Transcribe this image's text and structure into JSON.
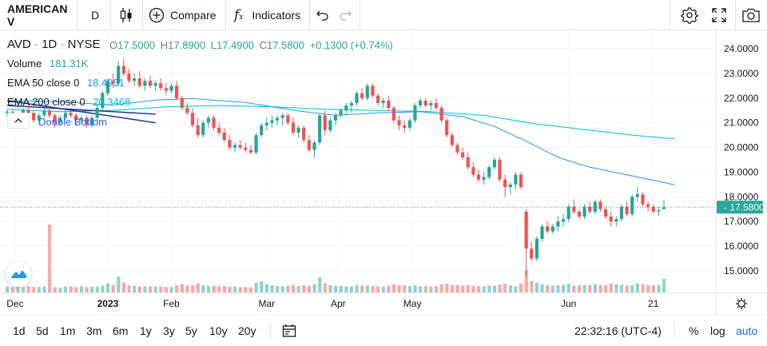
{
  "toolbar": {
    "symbol": "AMERICAN V",
    "interval": "D",
    "compare_label": "Compare",
    "indicators_label": "Indicators"
  },
  "legend": {
    "symbol": "AVD",
    "interval": "1D",
    "exchange": "NYSE",
    "o_label": "O",
    "o_value": "17.5000",
    "h_label": "H",
    "h_value": "17.8900",
    "l_label": "L",
    "l_value": "17.4900",
    "c_label": "C",
    "c_value": "17.5800",
    "change": "+0.1300 (+0.74%)",
    "volume_label": "Volume",
    "volume_value": "181.31K",
    "ema50_label": "EMA 50 close 0",
    "ema50_value": "18.4931",
    "ema200_label": "EMA 200 close 0",
    "ema200_value": "20.3468",
    "pattern_label": "Double Bottom"
  },
  "colors": {
    "up": "#26a69a",
    "down": "#ef5350",
    "ema50": "#2196f3",
    "ema200": "#00bcd4",
    "pattern": "#2962ff"
  },
  "price_tag": "17.5800",
  "time_display": "22:32:16 (UTC-4)",
  "ranges": [
    "1d",
    "5d",
    "1m",
    "3m",
    "6m",
    "1y",
    "3y",
    "5y",
    "10y",
    "20y"
  ],
  "scale_options": {
    "percent": "%",
    "log": "log",
    "auto": "auto"
  },
  "chart_data": {
    "type": "candlestick",
    "symbol": "AVD",
    "ylim": [
      14.5,
      24.5
    ],
    "y_ticks": [
      "24.0000",
      "23.0000",
      "22.0000",
      "21.0000",
      "20.0000",
      "19.0000",
      "18.0000",
      "17.0000",
      "16.0000",
      "15.0000"
    ],
    "x_ticks": [
      "Dec",
      "2023",
      "Feb",
      "Mar",
      "Apr",
      "May",
      "Jun",
      "21"
    ],
    "ohlc": [
      [
        21.4,
        21.55,
        21.25,
        21.45
      ],
      [
        21.45,
        21.5,
        21.1,
        21.2
      ],
      [
        21.2,
        21.4,
        21.0,
        21.35
      ],
      [
        21.35,
        21.6,
        21.2,
        21.5
      ],
      [
        21.5,
        21.7,
        21.3,
        21.4
      ],
      [
        21.4,
        21.5,
        21.0,
        21.1
      ],
      [
        21.1,
        21.4,
        21.0,
        21.3
      ],
      [
        21.3,
        21.6,
        21.2,
        21.5
      ],
      [
        21.5,
        21.7,
        21.2,
        21.3
      ],
      [
        21.3,
        21.4,
        20.8,
        21.0
      ],
      [
        21.0,
        21.3,
        20.9,
        21.2
      ],
      [
        21.2,
        21.5,
        21.1,
        21.4
      ],
      [
        21.4,
        21.5,
        21.2,
        21.3
      ],
      [
        21.3,
        21.4,
        20.9,
        21.1
      ],
      [
        21.1,
        21.3,
        21.0,
        21.2
      ],
      [
        21.2,
        21.3,
        20.8,
        20.9
      ],
      [
        20.9,
        21.3,
        20.8,
        21.2
      ],
      [
        21.2,
        21.7,
        21.1,
        21.6
      ],
      [
        21.6,
        22.3,
        21.5,
        22.2
      ],
      [
        22.2,
        22.8,
        22.1,
        22.7
      ],
      [
        22.7,
        23.0,
        22.4,
        22.6
      ],
      [
        22.6,
        23.5,
        22.5,
        23.3
      ],
      [
        23.3,
        23.6,
        22.9,
        23.0
      ],
      [
        23.0,
        23.2,
        22.6,
        22.7
      ],
      [
        22.7,
        23.0,
        22.5,
        22.8
      ],
      [
        22.8,
        23.1,
        22.4,
        22.5
      ],
      [
        22.5,
        22.8,
        22.3,
        22.7
      ],
      [
        22.7,
        22.9,
        22.4,
        22.5
      ],
      [
        22.5,
        22.7,
        22.3,
        22.6
      ],
      [
        22.6,
        22.8,
        22.3,
        22.4
      ],
      [
        22.4,
        22.6,
        22.1,
        22.3
      ],
      [
        22.3,
        22.6,
        22.2,
        22.5
      ],
      [
        22.5,
        22.7,
        21.9,
        22.0
      ],
      [
        22.0,
        22.1,
        21.5,
        21.6
      ],
      [
        21.6,
        21.8,
        21.3,
        21.4
      ],
      [
        21.4,
        21.6,
        20.8,
        20.9
      ],
      [
        20.9,
        21.2,
        20.4,
        20.5
      ],
      [
        20.5,
        21.1,
        20.4,
        21.0
      ],
      [
        21.0,
        21.3,
        20.8,
        21.2
      ],
      [
        21.2,
        21.3,
        20.7,
        20.8
      ],
      [
        20.8,
        21.0,
        20.5,
        20.6
      ],
      [
        20.6,
        20.8,
        20.2,
        20.3
      ],
      [
        20.3,
        20.5,
        19.9,
        20.0
      ],
      [
        20.0,
        20.2,
        19.8,
        20.1
      ],
      [
        20.1,
        20.3,
        19.9,
        20.0
      ],
      [
        20.0,
        20.2,
        19.8,
        19.9
      ],
      [
        19.9,
        20.1,
        19.7,
        19.8
      ],
      [
        19.8,
        20.6,
        19.7,
        20.5
      ],
      [
        20.5,
        21.0,
        20.4,
        20.9
      ],
      [
        20.9,
        21.2,
        20.7,
        21.0
      ],
      [
        21.0,
        21.3,
        20.8,
        21.1
      ],
      [
        21.1,
        21.3,
        20.9,
        21.2
      ],
      [
        21.2,
        21.4,
        20.9,
        21.3
      ],
      [
        21.3,
        21.4,
        20.9,
        21.0
      ],
      [
        21.0,
        21.2,
        20.5,
        20.6
      ],
      [
        20.6,
        20.9,
        20.4,
        20.8
      ],
      [
        20.8,
        20.9,
        20.2,
        20.3
      ],
      [
        20.3,
        20.5,
        19.8,
        19.9
      ],
      [
        19.9,
        20.3,
        19.6,
        20.2
      ],
      [
        20.2,
        21.4,
        20.1,
        21.3
      ],
      [
        21.3,
        21.5,
        20.5,
        20.7
      ],
      [
        20.7,
        21.2,
        20.6,
        21.1
      ],
      [
        21.1,
        21.4,
        20.9,
        21.3
      ],
      [
        21.3,
        21.6,
        21.2,
        21.5
      ],
      [
        21.5,
        21.8,
        21.3,
        21.7
      ],
      [
        21.7,
        21.9,
        21.4,
        21.8
      ],
      [
        21.8,
        22.3,
        21.7,
        22.2
      ],
      [
        22.2,
        22.4,
        21.9,
        22.0
      ],
      [
        22.0,
        22.6,
        21.9,
        22.5
      ],
      [
        22.5,
        22.6,
        22.0,
        22.1
      ],
      [
        22.1,
        22.2,
        21.7,
        21.8
      ],
      [
        21.8,
        22.0,
        21.6,
        21.9
      ],
      [
        21.9,
        22.1,
        21.5,
        21.6
      ],
      [
        21.6,
        21.7,
        21.0,
        21.1
      ],
      [
        21.1,
        21.3,
        20.7,
        20.9
      ],
      [
        20.9,
        21.1,
        20.6,
        20.8
      ],
      [
        20.8,
        21.2,
        20.7,
        21.1
      ],
      [
        21.1,
        21.8,
        21.0,
        21.7
      ],
      [
        21.7,
        22.0,
        21.6,
        21.9
      ],
      [
        21.9,
        22.0,
        21.6,
        21.7
      ],
      [
        21.7,
        21.9,
        21.5,
        21.8
      ],
      [
        21.8,
        22.0,
        21.5,
        21.6
      ],
      [
        21.6,
        21.7,
        21.0,
        21.1
      ],
      [
        21.1,
        21.2,
        20.4,
        20.5
      ],
      [
        20.5,
        20.6,
        20.0,
        20.1
      ],
      [
        20.1,
        20.2,
        19.7,
        19.8
      ],
      [
        19.8,
        20.0,
        19.5,
        19.6
      ],
      [
        19.6,
        19.8,
        19.1,
        19.2
      ],
      [
        19.2,
        19.4,
        18.8,
        18.9
      ],
      [
        18.9,
        19.1,
        18.6,
        18.7
      ],
      [
        18.7,
        19.0,
        18.5,
        18.8
      ],
      [
        18.8,
        19.3,
        18.7,
        19.2
      ],
      [
        19.2,
        19.6,
        19.1,
        19.5
      ],
      [
        19.5,
        19.6,
        18.6,
        18.7
      ],
      [
        18.7,
        18.9,
        18.0,
        18.4
      ],
      [
        18.4,
        18.6,
        18.1,
        18.5
      ],
      [
        18.5,
        19.0,
        18.3,
        18.9
      ],
      [
        18.9,
        19.0,
        18.3,
        18.4
      ],
      [
        17.4,
        17.5,
        14.8,
        15.9
      ],
      [
        15.9,
        16.2,
        15.4,
        15.5
      ],
      [
        15.5,
        16.4,
        15.4,
        16.3
      ],
      [
        16.3,
        16.9,
        16.2,
        16.8
      ],
      [
        16.8,
        17.0,
        16.5,
        16.6
      ],
      [
        16.6,
        16.9,
        16.5,
        16.8
      ],
      [
        16.8,
        17.2,
        16.6,
        17.0
      ],
      [
        17.0,
        17.3,
        16.8,
        17.1
      ],
      [
        17.1,
        17.7,
        17.0,
        17.6
      ],
      [
        17.6,
        17.9,
        17.3,
        17.4
      ],
      [
        17.4,
        17.5,
        17.1,
        17.2
      ],
      [
        17.2,
        17.7,
        17.1,
        17.6
      ],
      [
        17.6,
        17.8,
        17.3,
        17.4
      ],
      [
        17.4,
        17.9,
        17.3,
        17.8
      ],
      [
        17.8,
        17.9,
        17.4,
        17.5
      ],
      [
        17.5,
        17.6,
        17.1,
        17.2
      ],
      [
        17.2,
        17.4,
        16.8,
        17.0
      ],
      [
        17.0,
        17.2,
        16.8,
        17.1
      ],
      [
        17.1,
        17.7,
        17.0,
        17.6
      ],
      [
        17.6,
        17.8,
        17.2,
        17.3
      ],
      [
        17.3,
        18.1,
        17.2,
        18.0
      ],
      [
        18.0,
        18.4,
        17.8,
        18.1
      ],
      [
        18.1,
        18.2,
        17.6,
        17.7
      ],
      [
        17.7,
        17.8,
        17.4,
        17.6
      ],
      [
        17.6,
        17.7,
        17.3,
        17.4
      ],
      [
        17.4,
        17.6,
        17.2,
        17.45
      ],
      [
        17.5,
        17.89,
        17.49,
        17.58
      ]
    ],
    "volume_k": [
      80,
      70,
      75,
      70,
      80,
      75,
      72,
      78,
      900,
      70,
      65,
      75,
      80,
      70,
      85,
      70,
      75,
      78,
      90,
      120,
      100,
      210,
      130,
      95,
      90,
      80,
      85,
      80,
      75,
      78,
      72,
      70,
      95,
      110,
      90,
      100,
      120,
      95,
      85,
      90,
      80,
      85,
      75,
      80,
      70,
      72,
      68,
      130,
      150,
      110,
      95,
      85,
      80,
      90,
      100,
      85,
      95,
      90,
      110,
      200,
      120,
      95,
      90,
      85,
      80,
      78,
      100,
      90,
      95,
      85,
      80,
      78,
      90,
      110,
      100,
      95,
      85,
      95,
      80,
      85,
      78,
      82,
      110,
      120,
      100,
      95,
      90,
      100,
      90,
      85,
      80,
      95,
      90,
      105,
      115,
      95,
      80,
      120,
      300,
      150,
      130,
      110,
      100,
      90,
      95,
      100,
      115,
      90,
      95,
      100,
      95,
      110,
      100,
      95,
      120,
      110,
      100,
      90,
      95,
      120,
      110,
      100,
      95,
      100,
      181
    ],
    "ema50": [
      [
        0,
        21.9
      ],
      [
        10,
        21.85
      ],
      [
        20,
        21.72
      ],
      [
        28,
        21.92
      ],
      [
        35,
        21.98
      ],
      [
        45,
        21.82
      ],
      [
        55,
        21.48
      ],
      [
        62,
        21.3
      ],
      [
        70,
        21.4
      ],
      [
        78,
        21.45
      ],
      [
        86,
        21.25
      ],
      [
        92,
        20.85
      ],
      [
        98,
        20.25
      ],
      [
        104,
        19.6
      ],
      [
        110,
        19.2
      ],
      [
        118,
        18.85
      ],
      [
        126,
        18.49
      ]
    ],
    "ema200": [
      [
        0,
        21.55
      ],
      [
        10,
        21.45
      ],
      [
        20,
        21.5
      ],
      [
        30,
        21.65
      ],
      [
        40,
        21.7
      ],
      [
        50,
        21.65
      ],
      [
        60,
        21.55
      ],
      [
        70,
        21.5
      ],
      [
        80,
        21.45
      ],
      [
        90,
        21.3
      ],
      [
        100,
        20.95
      ],
      [
        110,
        20.7
      ],
      [
        118,
        20.5
      ],
      [
        126,
        20.35
      ]
    ],
    "pattern_lines": [
      [
        [
          0,
          21.7
        ],
        [
          28,
          21.35
        ]
      ],
      [
        [
          0,
          21.9
        ],
        [
          28,
          21.0
        ]
      ]
    ]
  }
}
